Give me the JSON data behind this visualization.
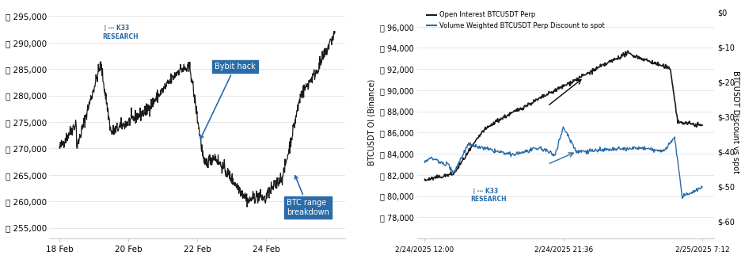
{
  "left": {
    "ylabel": "",
    "yticks": [
      255000,
      260000,
      265000,
      270000,
      275000,
      280000,
      285000,
      290000,
      295000
    ],
    "ylim": [
      253000,
      297000
    ],
    "xtick_labels": [
      "18 Feb",
      "20 Feb",
      "22 Feb",
      "24 Feb"
    ],
    "xtick_pos": [
      0,
      2,
      4,
      6
    ],
    "line_color": "#1a1a1a",
    "annotation_color": "#2a6ca8",
    "bybit_box_color": "#2a6ca8",
    "btcrange_box_color": "#2a6ca8",
    "logo_color": "#2a6ca8"
  },
  "right": {
    "left_ylabel": "BTCUSDT OI (Binance)",
    "right_ylabel": "BTCUSDT Discount vs spot",
    "left_yticks": [
      78000,
      80000,
      82000,
      84000,
      86000,
      88000,
      90000,
      92000,
      94000,
      96000
    ],
    "left_ylim": [
      76000,
      98000
    ],
    "right_yticks": [
      0,
      -10,
      -20,
      -30,
      -40,
      -50,
      -60
    ],
    "right_ylim": [
      -65,
      2
    ],
    "oi_line_color": "#1a1a1a",
    "discount_line_color": "#2a6ca8",
    "legend_oi": "Open Interest BTCUSDT Perp",
    "legend_disc": "Volume Weighted BTCUSDT Perp Discount to spot",
    "xtick_labels": [
      "2/24/2025 12:00",
      "2/24/2025 21:36",
      "2/25/2025 7:12"
    ],
    "xtick_pos": [
      0,
      9.6,
      19.2
    ]
  },
  "bg_color": "#ffffff",
  "border_color": "#cccccc"
}
